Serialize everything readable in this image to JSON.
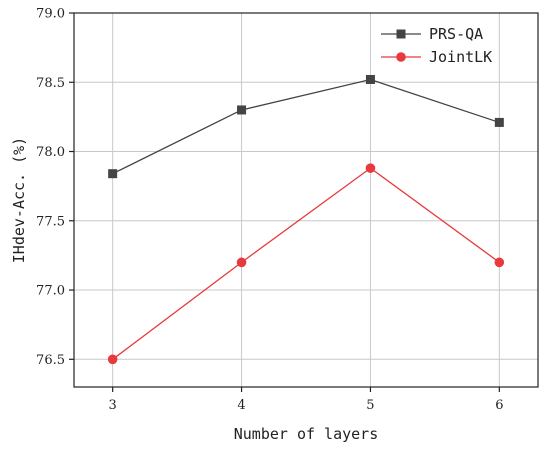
{
  "chart_data": {
    "type": "line",
    "title": "",
    "xlabel": "Number of layers",
    "ylabel": "IHdev-Acc. (%)",
    "x": [
      3,
      4,
      5,
      6
    ],
    "xticks": [
      "3",
      "4",
      "5",
      "6"
    ],
    "xlim": [
      2.7,
      6.3
    ],
    "ylim": [
      76.3,
      79.0
    ],
    "yticks": [
      "76.5",
      "77.0",
      "77.5",
      "78.0",
      "78.5",
      "79.0"
    ],
    "grid": true,
    "legend_position": "top-right",
    "series": [
      {
        "name": "PRS-QA",
        "values": [
          77.84,
          78.3,
          78.52,
          78.21
        ],
        "color": "#444444",
        "marker": "square"
      },
      {
        "name": "JointLK",
        "values": [
          76.5,
          77.2,
          77.88,
          77.2
        ],
        "color": "#e8393d",
        "marker": "circle"
      }
    ]
  }
}
